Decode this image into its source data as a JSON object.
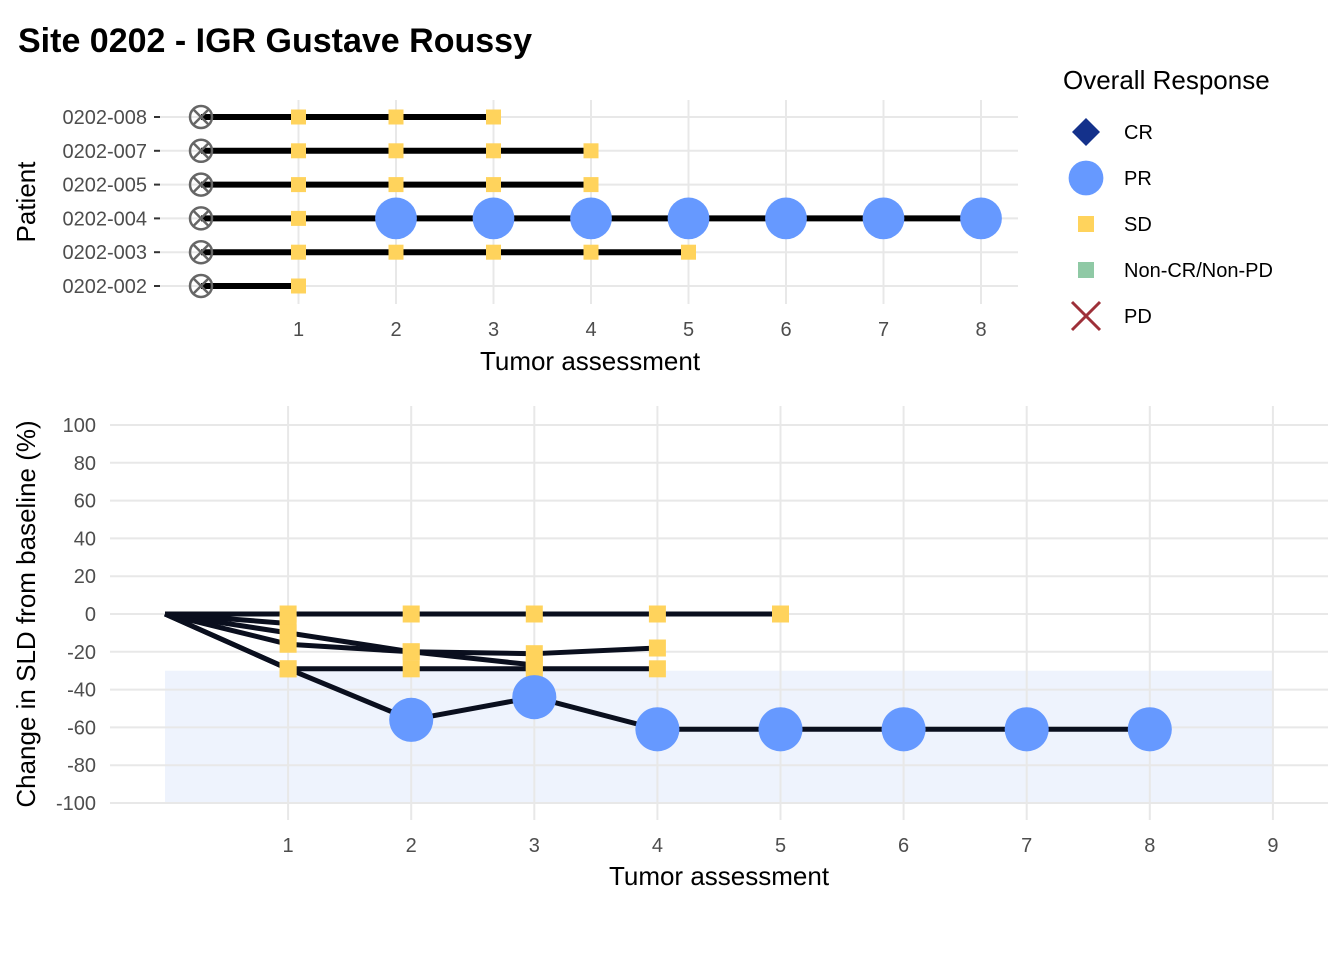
{
  "title": "Site 0202 - IGR Gustave Roussy",
  "colors": {
    "CR": "#14318b",
    "PR": "#6699ff",
    "SD": "#ffd35c",
    "NonCR": "#8fc9a5",
    "PD": "#9e3039",
    "line": "#000000",
    "baseline_marker": "#666666",
    "shade": "#eef3fd",
    "grid": "#e8e8e8"
  },
  "legend": {
    "title": "Overall Response",
    "items": [
      {
        "label": "CR",
        "shape": "diamond",
        "color": "#14318b"
      },
      {
        "label": "PR",
        "shape": "circle",
        "color": "#6699ff"
      },
      {
        "label": "SD",
        "shape": "square",
        "color": "#ffd35c"
      },
      {
        "label": "Non-CR/Non-PD",
        "shape": "square",
        "color": "#8fc9a5"
      },
      {
        "label": "PD",
        "shape": "cross",
        "color": "#9e3039"
      }
    ]
  },
  "chart_data": [
    {
      "type": "scatter",
      "subtype": "swimmer",
      "xlabel": "Tumor assessment",
      "ylabel": "Patient",
      "xticks": [
        1,
        2,
        3,
        4,
        5,
        6,
        7,
        8
      ],
      "xlim": [
        0,
        8
      ],
      "categories": [
        "0202-002",
        "0202-003",
        "0202-004",
        "0202-005",
        "0202-007",
        "0202-008"
      ],
      "series": [
        {
          "patient": "0202-008",
          "responses": [
            "SD",
            "SD",
            "SD"
          ]
        },
        {
          "patient": "0202-007",
          "responses": [
            "SD",
            "SD",
            "SD",
            "SD"
          ]
        },
        {
          "patient": "0202-005",
          "responses": [
            "SD",
            "SD",
            "SD",
            "SD"
          ]
        },
        {
          "patient": "0202-004",
          "responses": [
            "SD",
            "PR",
            "PR",
            "PR",
            "PR",
            "PR",
            "PR",
            "PR"
          ]
        },
        {
          "patient": "0202-003",
          "responses": [
            "SD",
            "SD",
            "SD",
            "SD",
            "SD"
          ]
        },
        {
          "patient": "0202-002",
          "responses": [
            "SD"
          ]
        }
      ],
      "grid": true
    },
    {
      "type": "line",
      "subtype": "spider",
      "xlabel": "Tumor assessment",
      "ylabel": "Change in SLD from baseline (%)",
      "xticks": [
        1,
        2,
        3,
        4,
        5,
        6,
        7,
        8,
        9
      ],
      "xlim": [
        0,
        9
      ],
      "yticks": [
        100,
        80,
        60,
        40,
        20,
        0,
        -20,
        -40,
        -60,
        -80,
        -100
      ],
      "ylim": [
        -100,
        100
      ],
      "shaded_band": [
        -100,
        -30
      ],
      "grid": true,
      "series": [
        {
          "patient": "0202-003",
          "x": [
            0,
            1,
            2,
            3,
            4,
            5
          ],
          "y": [
            0,
            0,
            0,
            0,
            0,
            0
          ],
          "responses": [
            "",
            "SD",
            "SD",
            "SD",
            "SD",
            "SD"
          ]
        },
        {
          "patient": "0202-002",
          "x": [
            0,
            1
          ],
          "y": [
            0,
            -5
          ],
          "responses": [
            "",
            "SD"
          ]
        },
        {
          "patient": "0202-005",
          "x": [
            0,
            1,
            2,
            3,
            4
          ],
          "y": [
            0,
            -10,
            -20,
            -21,
            -18
          ],
          "responses": [
            "",
            "SD",
            "SD",
            "SD",
            "SD"
          ]
        },
        {
          "patient": "0202-008",
          "x": [
            0,
            1,
            2,
            3
          ],
          "y": [
            0,
            -16,
            -20,
            -27
          ],
          "responses": [
            "",
            "SD",
            "SD",
            "SD"
          ]
        },
        {
          "patient": "0202-007",
          "x": [
            0,
            1,
            2,
            3,
            4
          ],
          "y": [
            0,
            -29,
            -29,
            -29,
            -29
          ],
          "responses": [
            "",
            "SD",
            "SD",
            "SD",
            "SD"
          ]
        },
        {
          "patient": "0202-004",
          "x": [
            0,
            1,
            2,
            3,
            4,
            5,
            6,
            7,
            8
          ],
          "y": [
            0,
            -29,
            -56,
            -44,
            -61,
            -61,
            -61,
            -61,
            -61
          ],
          "responses": [
            "",
            "SD",
            "PR",
            "PR",
            "PR",
            "PR",
            "PR",
            "PR",
            "PR"
          ]
        }
      ]
    }
  ]
}
